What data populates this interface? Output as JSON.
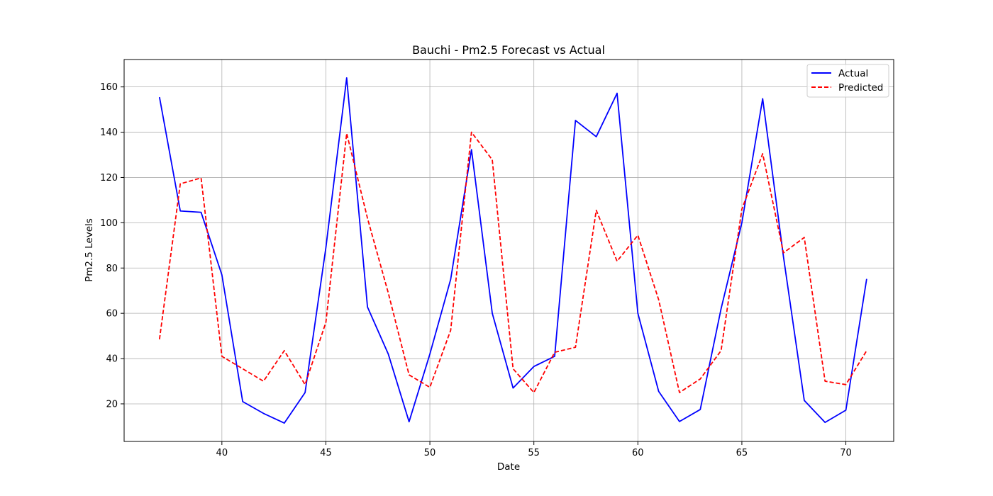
{
  "chart_data": {
    "type": "line",
    "title": "Bauchi - Pm2.5 Forecast vs Actual",
    "xlabel": "Date",
    "ylabel": "Pm2.5 Levels",
    "x": [
      37,
      38,
      39,
      40,
      41,
      42,
      43,
      44,
      45,
      46,
      47,
      48,
      49,
      50,
      51,
      52,
      53,
      54,
      55,
      56,
      57,
      58,
      59,
      60,
      61,
      62,
      63,
      64,
      65,
      66,
      67,
      68,
      69,
      70,
      71
    ],
    "series": [
      {
        "name": "Actual",
        "color": "#0000ff",
        "style": "solid",
        "values": [
          155.5,
          105.2,
          104.6,
          77.0,
          21.0,
          15.8,
          11.5,
          25.0,
          89.0,
          164.0,
          62.8,
          42.0,
          12.1,
          42.0,
          75.0,
          132.3,
          60.0,
          27.0,
          36.5,
          41.0,
          145.2,
          138.0,
          157.2,
          60.0,
          25.5,
          12.2,
          17.5,
          62.0,
          100.0,
          154.8,
          85.0,
          21.5,
          11.8,
          17.2,
          75.2
        ]
      },
      {
        "name": "Predicted",
        "color": "#ff0000",
        "style": "dashed",
        "values": [
          48.5,
          117.2,
          119.8,
          41.0,
          35.5,
          30.0,
          43.5,
          28.5,
          56.0,
          139.5,
          102.0,
          69.0,
          32.8,
          27.3,
          52.5,
          140.0,
          127.8,
          35.5,
          25.0,
          42.8,
          45.0,
          105.5,
          83.0,
          94.5,
          66.0,
          25.0,
          31.0,
          43.5,
          106.0,
          130.5,
          86.7,
          93.5,
          30.0,
          28.5,
          43.5
        ]
      }
    ],
    "xticks": [
      40,
      45,
      50,
      55,
      60,
      65,
      70
    ],
    "yticks": [
      20,
      40,
      60,
      80,
      100,
      120,
      140,
      160
    ],
    "xlim": [
      35.3,
      72.3
    ],
    "ylim": [
      3.4,
      172.1
    ],
    "grid": true,
    "legend_position": "top-right"
  }
}
